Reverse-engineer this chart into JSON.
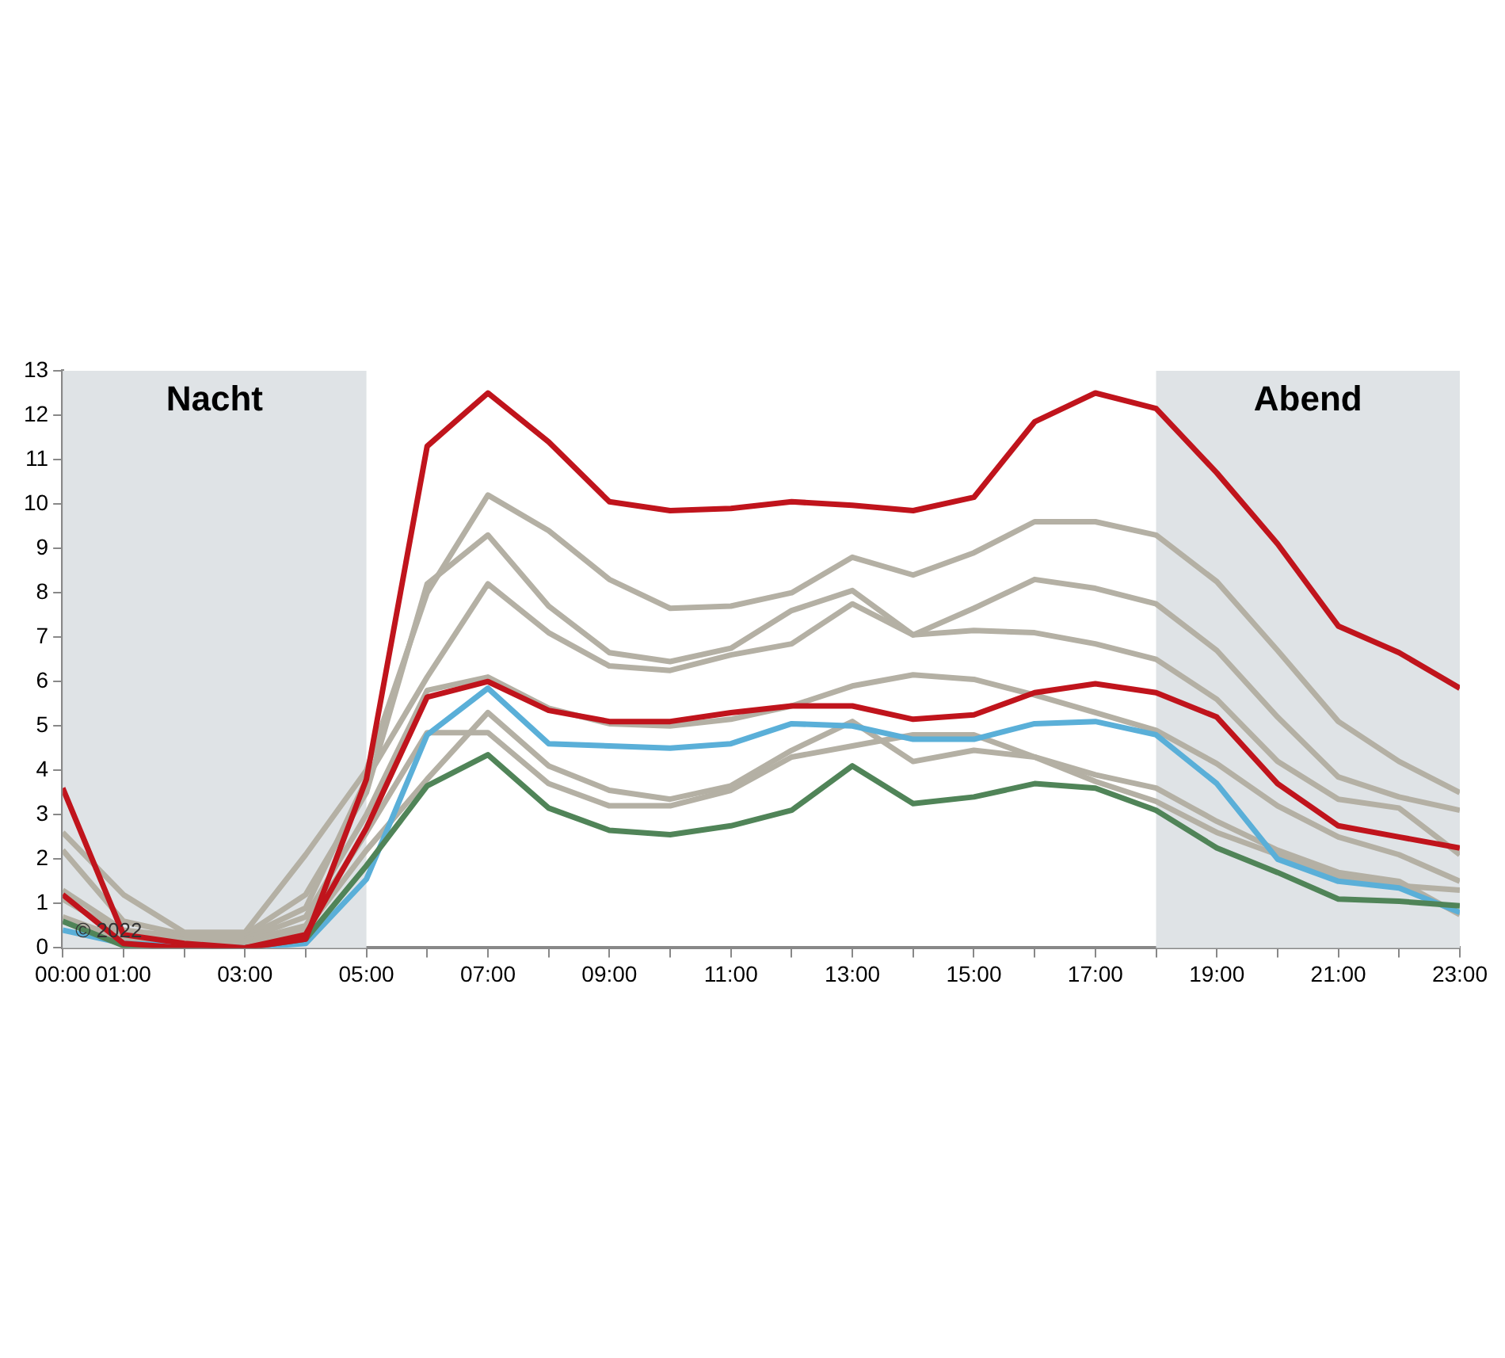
{
  "chart_data": {
    "type": "line",
    "x": [
      0,
      1,
      2,
      3,
      4,
      5,
      6,
      7,
      8,
      9,
      10,
      11,
      12,
      13,
      14,
      15,
      16,
      17,
      18,
      19,
      20,
      21,
      22,
      23
    ],
    "xlim": [
      0,
      23
    ],
    "xticks": [
      {
        "value": 0,
        "label": "00:00"
      },
      {
        "value": 1,
        "label": "01:00"
      },
      {
        "value": 2,
        "label": null
      },
      {
        "value": 3,
        "label": "03:00"
      },
      {
        "value": 4,
        "label": null
      },
      {
        "value": 5,
        "label": "05:00"
      },
      {
        "value": 6,
        "label": null
      },
      {
        "value": 7,
        "label": "07:00"
      },
      {
        "value": 8,
        "label": null
      },
      {
        "value": 9,
        "label": "09:00"
      },
      {
        "value": 10,
        "label": null
      },
      {
        "value": 11,
        "label": "11:00"
      },
      {
        "value": 12,
        "label": null
      },
      {
        "value": 13,
        "label": "13:00"
      },
      {
        "value": 14,
        "label": null
      },
      {
        "value": 15,
        "label": "15:00"
      },
      {
        "value": 16,
        "label": null
      },
      {
        "value": 17,
        "label": "17:00"
      },
      {
        "value": 18,
        "label": null
      },
      {
        "value": 19,
        "label": "19:00"
      },
      {
        "value": 20,
        "label": null
      },
      {
        "value": 21,
        "label": "21:00"
      },
      {
        "value": 22,
        "label": null
      },
      {
        "value": 23,
        "label": "23:00"
      }
    ],
    "ylim": [
      0,
      13
    ],
    "yticks": [
      0,
      1,
      2,
      3,
      4,
      5,
      6,
      7,
      8,
      9,
      10,
      11,
      12,
      13
    ],
    "grid": false,
    "legend": false,
    "marker": "none",
    "line_style": "solid",
    "bands": [
      {
        "axis": "x",
        "from": 0,
        "to": 5,
        "label": "Nacht",
        "color": "#dfe3e6"
      },
      {
        "axis": "x",
        "from": 18,
        "to": 23,
        "label": "Abend",
        "color": "#dfe3e6"
      }
    ],
    "annotations": [
      "© 2022"
    ],
    "series": [
      {
        "color": "#b4b0a4",
        "values": [
          2.6,
          1.2,
          0.35,
          0.35,
          2.1,
          4.0,
          8.0,
          10.2,
          9.4,
          8.3,
          7.65,
          7.7,
          8.0,
          8.8,
          8.4,
          8.9,
          9.6,
          9.6,
          9.3,
          8.25,
          6.7,
          5.1,
          4.2,
          3.5
        ]
      },
      {
        "color": "#b4b0a4",
        "values": [
          2.2,
          0.6,
          0.3,
          0.3,
          1.2,
          3.5,
          8.2,
          9.3,
          7.7,
          6.65,
          6.45,
          6.75,
          7.6,
          8.05,
          7.05,
          7.65,
          8.3,
          8.1,
          7.75,
          6.7,
          5.2,
          3.85,
          3.4,
          3.1
        ]
      },
      {
        "color": "#b4b0a4",
        "values": [
          1.3,
          0.4,
          0.25,
          0.25,
          0.9,
          3.8,
          6.1,
          8.2,
          7.1,
          6.35,
          6.25,
          6.6,
          6.85,
          7.75,
          7.05,
          7.15,
          7.1,
          6.85,
          6.5,
          5.6,
          4.2,
          3.35,
          3.15,
          2.1
        ]
      },
      {
        "color": "#b4b0a4",
        "values": [
          1.1,
          0.3,
          0.2,
          0.2,
          0.7,
          3.0,
          5.8,
          6.1,
          5.4,
          5.05,
          5.0,
          5.15,
          5.45,
          5.9,
          6.15,
          6.05,
          5.7,
          5.3,
          4.9,
          4.15,
          3.2,
          2.5,
          2.1,
          1.5
        ]
      },
      {
        "color": "#b4b0a4",
        "values": [
          0.7,
          0.2,
          0.15,
          0.15,
          0.5,
          2.6,
          4.85,
          4.85,
          3.7,
          3.2,
          3.2,
          3.55,
          4.3,
          4.55,
          4.8,
          4.8,
          4.3,
          3.75,
          3.3,
          2.6,
          2.1,
          1.6,
          1.4,
          1.3
        ]
      },
      {
        "color": "#b4b0a4",
        "values": [
          0.6,
          0.15,
          0.1,
          0.1,
          0.4,
          2.2,
          3.8,
          5.3,
          4.1,
          3.55,
          3.35,
          3.65,
          4.45,
          5.1,
          4.2,
          4.45,
          4.3,
          3.9,
          3.6,
          2.85,
          2.2,
          1.7,
          1.5,
          0.75
        ]
      },
      {
        "color": "#5aafd8",
        "values": [
          0.4,
          0.1,
          0.05,
          0,
          0.1,
          1.55,
          4.8,
          5.85,
          4.6,
          4.55,
          4.5,
          4.6,
          5.05,
          5.0,
          4.7,
          4.7,
          5.05,
          5.1,
          4.8,
          3.7,
          2.0,
          1.5,
          1.35,
          0.8
        ]
      },
      {
        "color": "#508458",
        "values": [
          0.6,
          0.05,
          0,
          0,
          0.2,
          1.85,
          3.65,
          4.35,
          3.15,
          2.65,
          2.55,
          2.75,
          3.1,
          4.1,
          3.25,
          3.4,
          3.7,
          3.6,
          3.1,
          2.25,
          1.7,
          1.1,
          1.05,
          0.95
        ]
      },
      {
        "color": "#c0141c",
        "values": [
          1.2,
          0.1,
          0,
          0,
          0.3,
          2.7,
          5.65,
          6.0,
          5.35,
          5.1,
          5.1,
          5.3,
          5.45,
          5.45,
          5.15,
          5.25,
          5.75,
          5.95,
          5.75,
          5.2,
          3.7,
          2.75,
          2.5,
          2.25
        ]
      },
      {
        "color": "#c0141c",
        "values": [
          3.6,
          0.3,
          0.1,
          0,
          0.2,
          3.8,
          11.3,
          12.5,
          11.4,
          10.05,
          9.85,
          9.9,
          10.05,
          9.97,
          9.85,
          10.15,
          11.85,
          12.5,
          12.15,
          10.7,
          9.1,
          7.25,
          6.65,
          5.85
        ]
      }
    ]
  }
}
